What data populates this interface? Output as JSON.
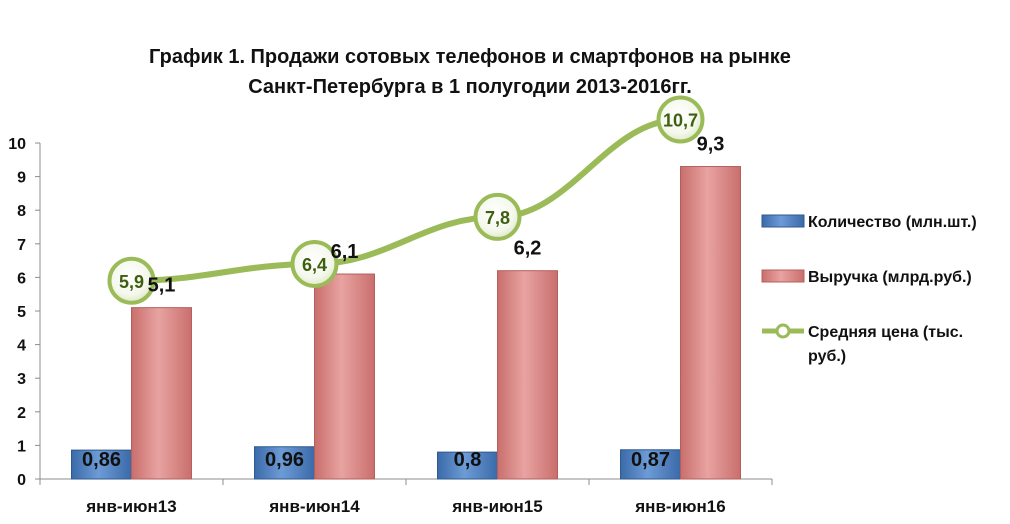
{
  "chart_data": {
    "type": "bar",
    "title_lines": [
      "График 1. Продажи сотовых телефонов и смартфонов на рынке",
      "Санкт-Петербурга в 1 полугодии 2013-2016гг."
    ],
    "categories": [
      "янв-июн13",
      "янв-июн14",
      "янв-июн15",
      "янв-июн16"
    ],
    "ylim": [
      0,
      10
    ],
    "yticks": [
      0,
      1,
      2,
      3,
      4,
      5,
      6,
      7,
      8,
      9,
      10
    ],
    "grid": false,
    "legend_position": "right",
    "series": [
      {
        "name": "Количество (млн.шт.)",
        "kind": "bar",
        "color": "#4f81bd",
        "values": [
          0.86,
          0.96,
          0.8,
          0.87
        ],
        "labels": [
          "0,86",
          "0,96",
          "0,8",
          "0,87"
        ]
      },
      {
        "name": "Выручка (млрд.руб.)",
        "kind": "bar",
        "color": "#d99594",
        "values": [
          5.1,
          6.1,
          6.2,
          9.3
        ],
        "labels": [
          "5,1",
          "6,1",
          "6,2",
          "9,3"
        ]
      },
      {
        "name": "Средняя цена (тыс. руб.)",
        "kind": "line",
        "color": "#9bbb59",
        "values": [
          5.9,
          6.4,
          7.8,
          10.7
        ],
        "labels": [
          "5,9",
          "6,4",
          "7,8",
          "10,7"
        ]
      }
    ]
  }
}
